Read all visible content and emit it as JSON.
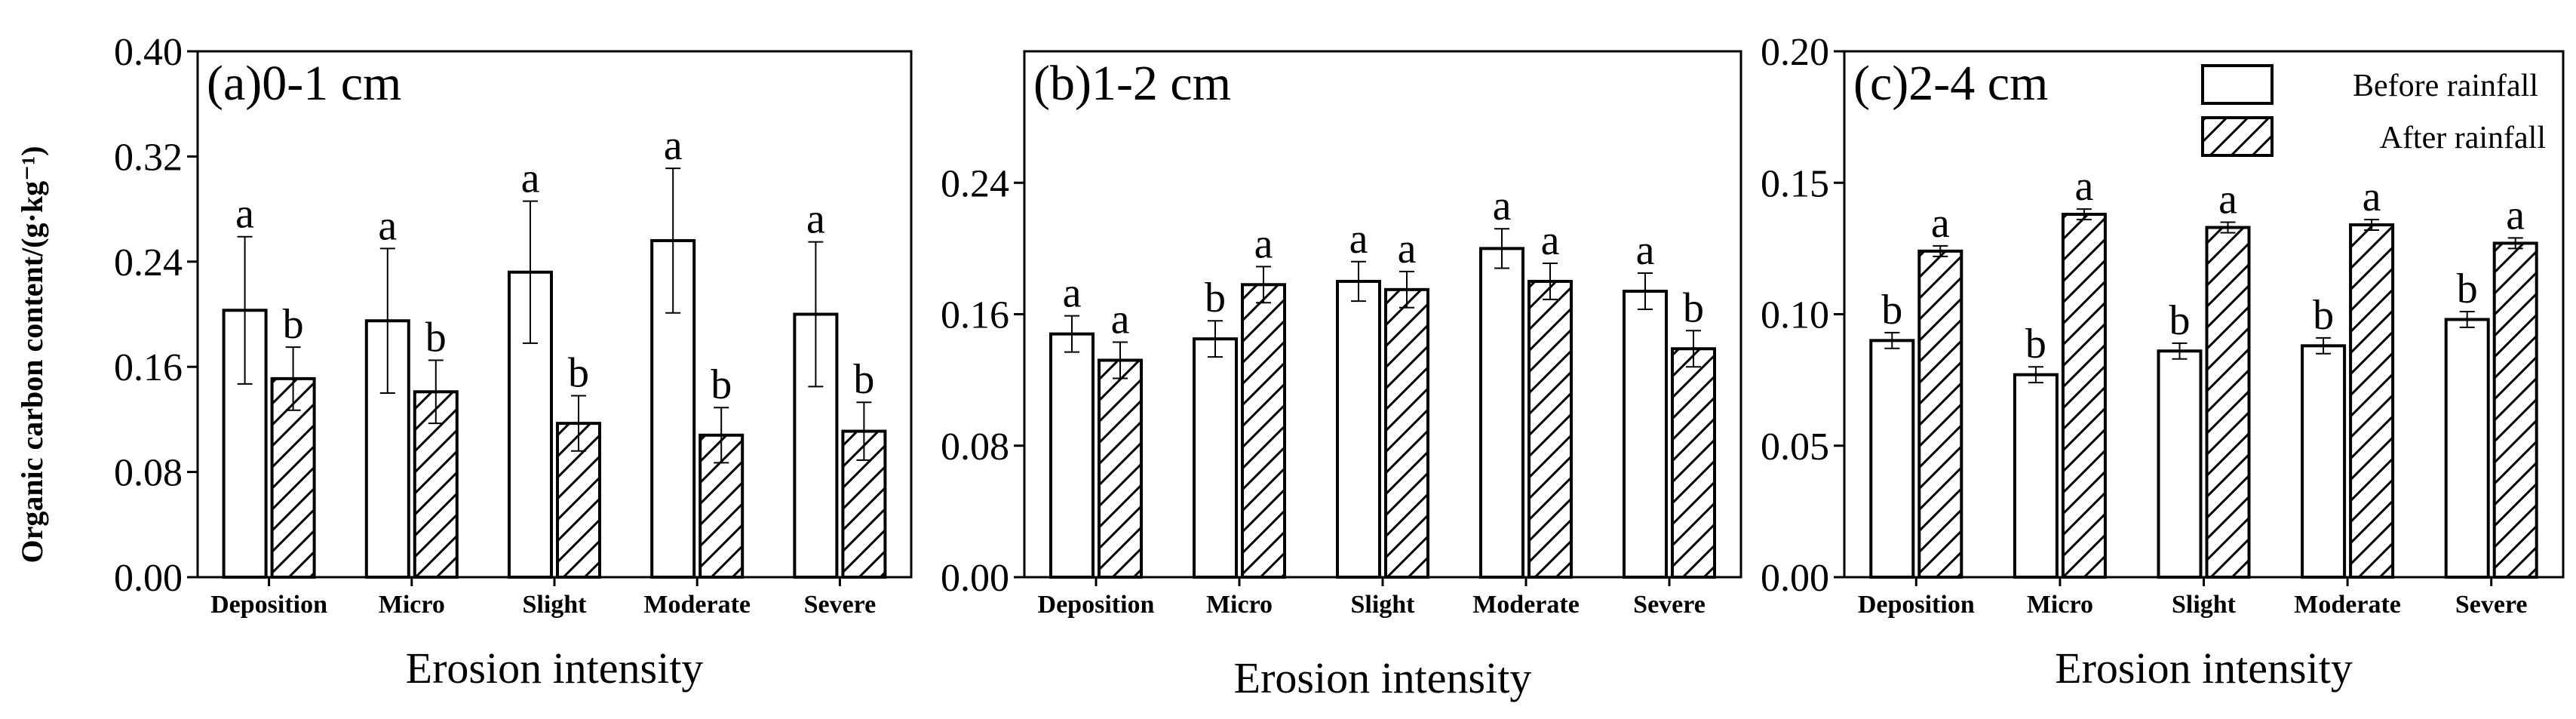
{
  "ylabel": "Organic carbon content/(g·kg⁻¹)",
  "legend": {
    "before": "Before rainfall",
    "after": "After rainfall"
  },
  "chart_data": [
    {
      "type": "bar",
      "title": "(a)0-1 cm",
      "xlabel": "Erosion intensity",
      "ylim": [
        0,
        0.4
      ],
      "yticks": [
        "0.00",
        "0.08",
        "0.16",
        "0.24",
        "0.32",
        "0.40"
      ],
      "tick_values": [
        0,
        0.08,
        0.16,
        0.24,
        0.32,
        0.4
      ],
      "categories": [
        "Deposition",
        "Micro",
        "Slight",
        "Moderate",
        "Severe"
      ],
      "series": [
        {
          "name": "Before rainfall",
          "values": [
            0.203,
            0.195,
            0.232,
            0.256,
            0.2
          ],
          "errors": [
            0.056,
            0.055,
            0.054,
            0.055,
            0.055
          ],
          "labels": [
            "a",
            "a",
            "a",
            "a",
            "a"
          ]
        },
        {
          "name": "After rainfall",
          "values": [
            0.151,
            0.141,
            0.117,
            0.108,
            0.111
          ],
          "errors": [
            0.024,
            0.024,
            0.021,
            0.021,
            0.022
          ],
          "labels": [
            "b",
            "b",
            "b",
            "b",
            "b"
          ]
        }
      ]
    },
    {
      "type": "bar",
      "title": "(b)1-2 cm",
      "xlabel": "Erosion intensity",
      "ylim": [
        0,
        0.32
      ],
      "yticks": [
        "0.00",
        "0.08",
        "0.16",
        "0.24"
      ],
      "tick_values": [
        0,
        0.08,
        0.16,
        0.24
      ],
      "categories": [
        "Deposition",
        "Micro",
        "Slight",
        "Moderate",
        "Severe"
      ],
      "series": [
        {
          "name": "Before rainfall",
          "values": [
            0.148,
            0.145,
            0.18,
            0.2,
            0.174
          ],
          "errors": [
            0.011,
            0.011,
            0.012,
            0.012,
            0.011
          ],
          "labels": [
            "a",
            "b",
            "a",
            "a",
            "a"
          ]
        },
        {
          "name": "After rainfall",
          "values": [
            0.132,
            0.178,
            0.175,
            0.18,
            0.139
          ],
          "errors": [
            0.011,
            0.011,
            0.011,
            0.011,
            0.011
          ],
          "labels": [
            "a",
            "a",
            "a",
            "a",
            "b"
          ]
        }
      ]
    },
    {
      "type": "bar",
      "title": "(c)2-4 cm",
      "xlabel": "Erosion intensity",
      "ylim": [
        0,
        0.2
      ],
      "yticks": [
        "0.00",
        "0.05",
        "0.10",
        "0.15",
        "0.20"
      ],
      "tick_values": [
        0,
        0.05,
        0.1,
        0.15,
        0.2
      ],
      "categories": [
        "Deposition",
        "Micro",
        "Slight",
        "Moderate",
        "Severe"
      ],
      "series": [
        {
          "name": "Before rainfall",
          "values": [
            0.09,
            0.077,
            0.086,
            0.088,
            0.098
          ],
          "errors": [
            0.003,
            0.003,
            0.003,
            0.003,
            0.003
          ],
          "labels": [
            "b",
            "b",
            "b",
            "b",
            "b"
          ]
        },
        {
          "name": "After rainfall",
          "values": [
            0.124,
            0.138,
            0.133,
            0.134,
            0.127
          ],
          "errors": [
            0.002,
            0.002,
            0.002,
            0.002,
            0.002
          ],
          "labels": [
            "a",
            "a",
            "a",
            "a",
            "a"
          ]
        }
      ]
    }
  ]
}
